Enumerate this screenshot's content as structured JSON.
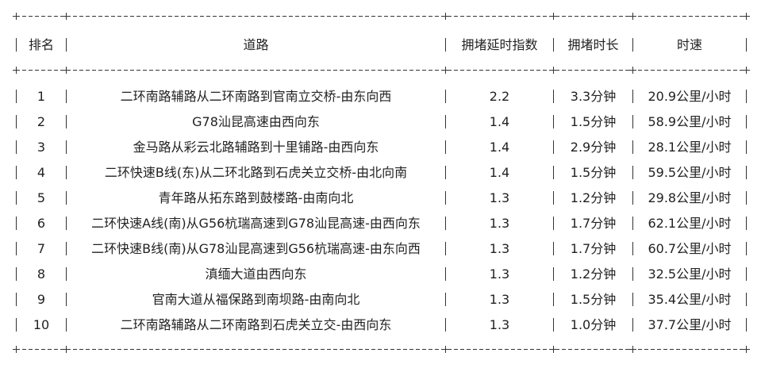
{
  "table": {
    "headers": [
      "排名",
      "道路",
      "拥堵延时指数",
      "拥堵时长",
      "时速"
    ],
    "rows": [
      [
        "1",
        "二环南路辅路从二环南路到官南立交桥-由东向西",
        "2.2",
        "3.3分钟",
        "20.9公里/小时"
      ],
      [
        "2",
        "G78汕昆高速由西向东",
        "1.4",
        "1.5分钟",
        "58.9公里/小时"
      ],
      [
        "3",
        "金马路从彩云北路辅路到十里铺路-由西向东",
        "1.4",
        "2.9分钟",
        "28.1公里/小时"
      ],
      [
        "4",
        "二环快速B线(东)从二环北路到石虎关立交桥-由北向南",
        "1.4",
        "1.5分钟",
        "59.5公里/小时"
      ],
      [
        "5",
        "青年路从拓东路到鼓楼路-由南向北",
        "1.3",
        "1.2分钟",
        "29.8公里/小时"
      ],
      [
        "6",
        "二环快速A线(南)从G56杭瑞高速到G78汕昆高速-由西向东",
        "1.3",
        "1.7分钟",
        "62.1公里/小时"
      ],
      [
        "7",
        "二环快速B线(南)从G78汕昆高速到G56杭瑞高速-由东向西",
        "1.3",
        "1.7分钟",
        "60.7公里/小时"
      ],
      [
        "8",
        "滇缅大道由西向东",
        "1.3",
        "1.2分钟",
        "32.5公里/小时"
      ],
      [
        "9",
        "官南大道从福保路到南坝路-由南向北",
        "1.3",
        "1.5分钟",
        "35.4公里/小时"
      ],
      [
        "10",
        "二环南路辅路从二环南路到石虎关立交-由西向东",
        "1.3",
        "1.0分钟",
        "37.7公里/小时"
      ]
    ]
  }
}
